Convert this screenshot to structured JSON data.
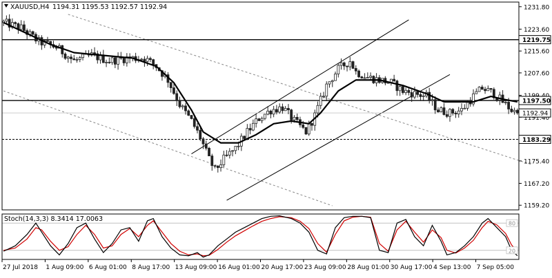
{
  "colors": {
    "background": "#ffffff",
    "frame": "#000000",
    "candle": "#222222",
    "moving_average": "#000000",
    "channel": "#000000",
    "trendline": "#888888",
    "stoch_k": "#000000",
    "stoch_d": "#d00000",
    "level_label_bg": "#ffffff"
  },
  "header": {
    "icon": "triangle-down-icon",
    "symbol": "XAUUSD,H4",
    "ohlc": "1194.31 1195.53 1192.57 1192.94"
  },
  "stochastic": {
    "label": "Stoch(14,3,3) 8.3414 17.0063",
    "ylim": [
      0,
      100
    ],
    "level_labels": [
      "80",
      "20"
    ]
  },
  "chart_data": [
    {
      "type": "candlestick",
      "symbol": "XAUUSD",
      "timeframe": "H4",
      "ylim": [
        1157.5,
        1233.5
      ],
      "price_ticks": [
        "1231.80",
        "1223.60",
        "1215.60",
        "1207.60",
        "1199.40",
        "1191.40",
        "1183.20",
        "1175.40",
        "1167.20",
        "1159.20"
      ],
      "time_ticks": [
        "27 Jul 2018",
        "1 Aug 09:00",
        "6 Aug 01:00",
        "8 Aug 17:00",
        "13 Aug 09:00",
        "16 Aug 01:00",
        "20 Aug 17:00",
        "23 Aug 09:00",
        "28 Aug 01:00",
        "30 Aug 17:00",
        "4 Sep 13:00",
        "7 Sep 05:00"
      ],
      "horizontal_levels": [
        {
          "value": 1219.75,
          "label": "1219.75",
          "style": "solid"
        },
        {
          "value": 1197.5,
          "label": "1197.50",
          "style": "solid"
        },
        {
          "value": 1183.29,
          "label": "1183.29",
          "style": "dashed"
        }
      ],
      "current_price": {
        "value": 1192.94,
        "label": "1192.94"
      },
      "close_path": [
        [
          0,
          1226
        ],
        [
          6,
          1224
        ],
        [
          12,
          1219
        ],
        [
          18,
          1217
        ],
        [
          24,
          1212
        ],
        [
          30,
          1214
        ],
        [
          36,
          1212
        ],
        [
          42,
          1213
        ],
        [
          48,
          1213
        ],
        [
          52,
          1210
        ],
        [
          56,
          1205
        ],
        [
          60,
          1196
        ],
        [
          64,
          1190
        ],
        [
          67,
          1184
        ],
        [
          70,
          1176
        ],
        [
          72,
          1172
        ],
        [
          75,
          1176
        ],
        [
          79,
          1180
        ],
        [
          83,
          1186
        ],
        [
          87,
          1191
        ],
        [
          91,
          1194
        ],
        [
          95,
          1195
        ],
        [
          99,
          1190
        ],
        [
          103,
          1186
        ],
        [
          106,
          1192
        ],
        [
          110,
          1203
        ],
        [
          114,
          1209
        ],
        [
          118,
          1212
        ],
        [
          120,
          1208
        ],
        [
          124,
          1206
        ],
        [
          128,
          1205
        ],
        [
          132,
          1204
        ],
        [
          136,
          1201
        ],
        [
          140,
          1200
        ],
        [
          144,
          1199
        ],
        [
          148,
          1194
        ],
        [
          152,
          1193
        ],
        [
          156,
          1194
        ],
        [
          160,
          1199
        ],
        [
          163,
          1202
        ],
        [
          167,
          1200
        ],
        [
          170,
          1197
        ],
        [
          173,
          1194
        ],
        [
          175,
          1193
        ]
      ],
      "moving_average_path": [
        [
          0,
          1226
        ],
        [
          8,
          1222
        ],
        [
          16,
          1218
        ],
        [
          24,
          1215
        ],
        [
          34,
          1214
        ],
        [
          44,
          1213
        ],
        [
          52,
          1210
        ],
        [
          58,
          1204
        ],
        [
          64,
          1194
        ],
        [
          68,
          1186
        ],
        [
          74,
          1182
        ],
        [
          80,
          1182
        ],
        [
          86,
          1185
        ],
        [
          92,
          1189
        ],
        [
          98,
          1190
        ],
        [
          104,
          1189
        ],
        [
          108,
          1193
        ],
        [
          114,
          1201
        ],
        [
          120,
          1205
        ],
        [
          128,
          1205
        ],
        [
          136,
          1203
        ],
        [
          144,
          1200
        ],
        [
          150,
          1197
        ],
        [
          160,
          1197
        ],
        [
          166,
          1199
        ],
        [
          170,
          1198
        ],
        [
          175,
          1197
        ]
      ],
      "ascending_channel": {
        "lower": [
          [
            76,
            1161
          ],
          [
            152,
            1207
          ]
        ],
        "upper": [
          [
            64,
            1178
          ],
          [
            138,
            1227
          ]
        ]
      },
      "descending_trendlines": [
        [
          [
            22,
            1229
          ],
          [
            180,
            1174
          ]
        ],
        [
          [
            0,
            1201
          ],
          [
            112,
            1159
          ]
        ]
      ],
      "stochastic_k_path": [
        [
          0,
          18
        ],
        [
          4,
          30
        ],
        [
          8,
          55
        ],
        [
          11,
          80
        ],
        [
          13,
          60
        ],
        [
          16,
          30
        ],
        [
          19,
          10
        ],
        [
          22,
          35
        ],
        [
          25,
          70
        ],
        [
          28,
          80
        ],
        [
          31,
          45
        ],
        [
          34,
          15
        ],
        [
          37,
          35
        ],
        [
          40,
          65
        ],
        [
          43,
          70
        ],
        [
          46,
          40
        ],
        [
          49,
          85
        ],
        [
          51,
          90
        ],
        [
          54,
          50
        ],
        [
          57,
          25
        ],
        [
          60,
          10
        ],
        [
          63,
          8
        ],
        [
          66,
          15
        ],
        [
          68,
          5
        ],
        [
          70,
          10
        ],
        [
          73,
          30
        ],
        [
          76,
          45
        ],
        [
          79,
          60
        ],
        [
          82,
          70
        ],
        [
          85,
          80
        ],
        [
          88,
          90
        ],
        [
          91,
          95
        ],
        [
          94,
          96
        ],
        [
          98,
          90
        ],
        [
          101,
          80
        ],
        [
          104,
          60
        ],
        [
          107,
          20
        ],
        [
          110,
          12
        ],
        [
          113,
          70
        ],
        [
          116,
          92
        ],
        [
          119,
          95
        ],
        [
          122,
          95
        ],
        [
          125,
          92
        ],
        [
          128,
          20
        ],
        [
          131,
          15
        ],
        [
          134,
          80
        ],
        [
          137,
          88
        ],
        [
          140,
          50
        ],
        [
          143,
          30
        ],
        [
          146,
          75
        ],
        [
          149,
          40
        ],
        [
          151,
          10
        ],
        [
          154,
          15
        ],
        [
          157,
          30
        ],
        [
          160,
          50
        ],
        [
          163,
          80
        ],
        [
          165,
          90
        ],
        [
          168,
          70
        ],
        [
          171,
          50
        ],
        [
          173,
          20
        ],
        [
          175,
          8
        ]
      ],
      "stochastic_d_path": [
        [
          0,
          20
        ],
        [
          4,
          25
        ],
        [
          8,
          45
        ],
        [
          11,
          70
        ],
        [
          13,
          65
        ],
        [
          16,
          40
        ],
        [
          19,
          20
        ],
        [
          22,
          28
        ],
        [
          25,
          55
        ],
        [
          28,
          75
        ],
        [
          31,
          55
        ],
        [
          34,
          25
        ],
        [
          37,
          30
        ],
        [
          40,
          55
        ],
        [
          43,
          68
        ],
        [
          46,
          50
        ],
        [
          49,
          75
        ],
        [
          51,
          85
        ],
        [
          54,
          60
        ],
        [
          57,
          35
        ],
        [
          60,
          18
        ],
        [
          63,
          10
        ],
        [
          66,
          12
        ],
        [
          68,
          8
        ],
        [
          70,
          9
        ],
        [
          73,
          22
        ],
        [
          76,
          38
        ],
        [
          79,
          52
        ],
        [
          82,
          63
        ],
        [
          85,
          74
        ],
        [
          88,
          84
        ],
        [
          91,
          90
        ],
        [
          94,
          94
        ],
        [
          98,
          92
        ],
        [
          101,
          84
        ],
        [
          104,
          68
        ],
        [
          107,
          35
        ],
        [
          110,
          16
        ],
        [
          113,
          55
        ],
        [
          116,
          85
        ],
        [
          119,
          93
        ],
        [
          122,
          95
        ],
        [
          125,
          93
        ],
        [
          128,
          35
        ],
        [
          131,
          18
        ],
        [
          134,
          65
        ],
        [
          137,
          84
        ],
        [
          140,
          60
        ],
        [
          143,
          38
        ],
        [
          146,
          65
        ],
        [
          149,
          48
        ],
        [
          151,
          20
        ],
        [
          154,
          14
        ],
        [
          157,
          25
        ],
        [
          160,
          42
        ],
        [
          163,
          70
        ],
        [
          165,
          84
        ],
        [
          168,
          76
        ],
        [
          171,
          57
        ],
        [
          173,
          32
        ],
        [
          175,
          17
        ]
      ]
    }
  ]
}
